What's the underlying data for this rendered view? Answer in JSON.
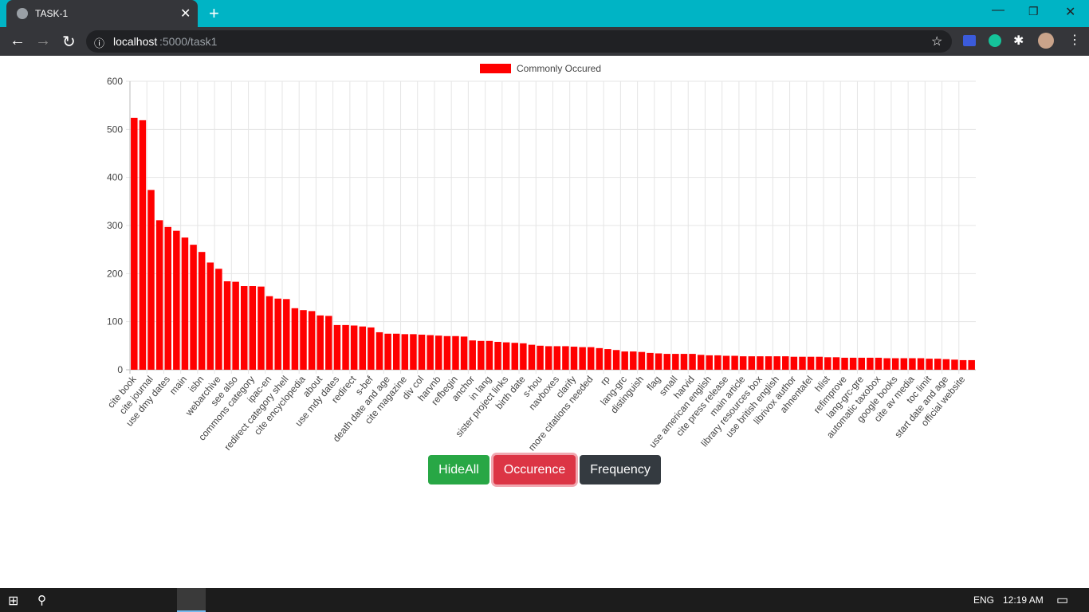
{
  "browser": {
    "tab_title": "TASK-1",
    "url": {
      "host": "localhost",
      "path": ":5000/task1"
    }
  },
  "chart_data": {
    "type": "bar",
    "categories": [
      "cite book",
      null,
      "cite journal",
      null,
      "use dmy dates",
      null,
      "main",
      null,
      "isbn",
      null,
      "webarchive",
      null,
      "see also",
      null,
      "commons category",
      null,
      "ipac-en",
      null,
      "redirect category shell",
      null,
      "cite encyclopedia",
      null,
      "about",
      null,
      "use mdy dates",
      null,
      "redirect",
      null,
      "s-bef",
      null,
      "death date and age",
      null,
      "cite magazine",
      null,
      "div col",
      null,
      "harvnb",
      null,
      "refbegin",
      null,
      "anchor",
      null,
      "in lang",
      null,
      "sister project links",
      null,
      "birth date",
      null,
      "s-hou",
      null,
      "navboxes",
      null,
      "clarify",
      null,
      "more citations needed",
      null,
      "rp",
      null,
      "lang-grc",
      null,
      "distinguish",
      null,
      "flag",
      null,
      "small",
      null,
      "harvid",
      null,
      "use american english",
      null,
      "cite press release",
      null,
      "main article",
      null,
      "library resources box",
      null,
      "use british english",
      null,
      "librivox author",
      null,
      "ahnentafel",
      null,
      "hlist",
      null,
      "refimprove",
      null,
      "lang-grc-gre",
      null,
      "automatic taxobox",
      null,
      "google books",
      null,
      "cite av media",
      null,
      "toc limit",
      null,
      "start date and age",
      null,
      "official website",
      null
    ],
    "series": [
      {
        "name": "Commonly Occured",
        "color": "#ff0000",
        "values": [
          524,
          519,
          374,
          311,
          297,
          289,
          275,
          260,
          245,
          223,
          210,
          184,
          183,
          174,
          174,
          173,
          153,
          148,
          147,
          128,
          124,
          122,
          113,
          112,
          93,
          93,
          92,
          90,
          88,
          78,
          75,
          75,
          74,
          74,
          73,
          72,
          71,
          70,
          70,
          69,
          61,
          60,
          60,
          58,
          57,
          56,
          55,
          52,
          50,
          49,
          49,
          49,
          48,
          47,
          47,
          45,
          43,
          41,
          38,
          38,
          37,
          35,
          34,
          33,
          33,
          33,
          33,
          31,
          30,
          30,
          29,
          29,
          28,
          28,
          28,
          28,
          28,
          28,
          27,
          27,
          27,
          27,
          26,
          26,
          25,
          25,
          25,
          25,
          25,
          24,
          24,
          24,
          24,
          24,
          23,
          23,
          22,
          21,
          20,
          20
        ]
      }
    ],
    "ylim": [
      0,
      600
    ],
    "yticks": [
      0,
      100,
      200,
      300,
      400,
      500,
      600
    ],
    "grid": true
  },
  "buttons": [
    "HideAll",
    "Occurence",
    "Frequency"
  ],
  "taskbar": {
    "language": "ENG",
    "time": "12:19 AM"
  }
}
